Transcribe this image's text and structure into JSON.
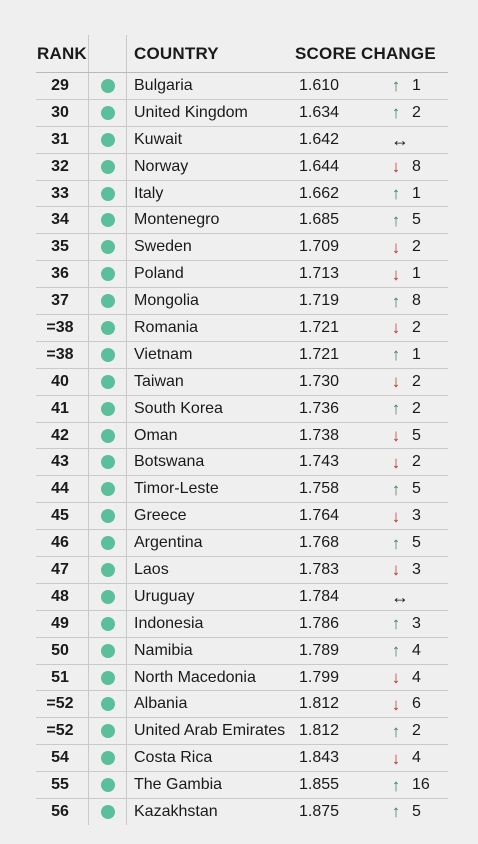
{
  "headers": {
    "rank": "RANK",
    "country": "COUNTRY",
    "score": "SCORE",
    "change": "CHANGE"
  },
  "colors": {
    "dot": "#5cbf9c",
    "up": "#3f7f55",
    "down": "#b3382d"
  },
  "rows": [
    {
      "rank": "29",
      "country": "Bulgaria",
      "score": "1.610",
      "dir": "up",
      "delta": "1"
    },
    {
      "rank": "30",
      "country": "United Kingdom",
      "score": "1.634",
      "dir": "up",
      "delta": "2"
    },
    {
      "rank": "31",
      "country": "Kuwait",
      "score": "1.642",
      "dir": "same",
      "delta": ""
    },
    {
      "rank": "32",
      "country": "Norway",
      "score": "1.644",
      "dir": "down",
      "delta": "8"
    },
    {
      "rank": "33",
      "country": "Italy",
      "score": "1.662",
      "dir": "up",
      "delta": "1"
    },
    {
      "rank": "34",
      "country": "Montenegro",
      "score": "1.685",
      "dir": "up",
      "delta": "5"
    },
    {
      "rank": "35",
      "country": "Sweden",
      "score": "1.709",
      "dir": "down",
      "delta": "2"
    },
    {
      "rank": "36",
      "country": "Poland",
      "score": "1.713",
      "dir": "down",
      "delta": "1"
    },
    {
      "rank": "37",
      "country": "Mongolia",
      "score": "1.719",
      "dir": "up",
      "delta": "8"
    },
    {
      "rank": "=38",
      "country": "Romania",
      "score": "1.721",
      "dir": "down",
      "delta": "2"
    },
    {
      "rank": "=38",
      "country": "Vietnam",
      "score": "1.721",
      "dir": "up",
      "delta": "1"
    },
    {
      "rank": "40",
      "country": "Taiwan",
      "score": "1.730",
      "dir": "down",
      "delta": "2"
    },
    {
      "rank": "41",
      "country": "South Korea",
      "score": "1.736",
      "dir": "up",
      "delta": "2"
    },
    {
      "rank": "42",
      "country": "Oman",
      "score": "1.738",
      "dir": "down",
      "delta": "5"
    },
    {
      "rank": "43",
      "country": "Botswana",
      "score": "1.743",
      "dir": "down",
      "delta": "2"
    },
    {
      "rank": "44",
      "country": "Timor-Leste",
      "score": "1.758",
      "dir": "up",
      "delta": "5"
    },
    {
      "rank": "45",
      "country": "Greece",
      "score": "1.764",
      "dir": "down",
      "delta": "3"
    },
    {
      "rank": "46",
      "country": "Argentina",
      "score": "1.768",
      "dir": "up",
      "delta": "5"
    },
    {
      "rank": "47",
      "country": "Laos",
      "score": "1.783",
      "dir": "down",
      "delta": "3"
    },
    {
      "rank": "48",
      "country": "Uruguay",
      "score": "1.784",
      "dir": "same",
      "delta": ""
    },
    {
      "rank": "49",
      "country": "Indonesia",
      "score": "1.786",
      "dir": "up",
      "delta": "3"
    },
    {
      "rank": "50",
      "country": "Namibia",
      "score": "1.789",
      "dir": "up",
      "delta": "4"
    },
    {
      "rank": "51",
      "country": "North Macedonia",
      "score": "1.799",
      "dir": "down",
      "delta": "4"
    },
    {
      "rank": "=52",
      "country": "Albania",
      "score": "1.812",
      "dir": "down",
      "delta": "6"
    },
    {
      "rank": "=52",
      "country": "United Arab Emirates",
      "score": "1.812",
      "dir": "up",
      "delta": "2"
    },
    {
      "rank": "54",
      "country": "Costa Rica",
      "score": "1.843",
      "dir": "down",
      "delta": "4"
    },
    {
      "rank": "55",
      "country": "The Gambia",
      "score": "1.855",
      "dir": "up",
      "delta": "16"
    },
    {
      "rank": "56",
      "country": "Kazakhstan",
      "score": "1.875",
      "dir": "up",
      "delta": "5"
    }
  ]
}
